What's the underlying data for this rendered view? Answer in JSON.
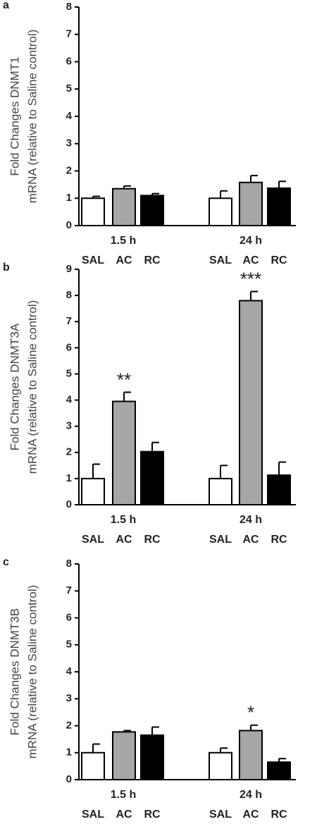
{
  "chart_data": [
    {
      "type": "bar",
      "panel": "a",
      "ylabel": [
        "Fold Changes DNMT1",
        "mRNA (relative to Saline control)"
      ],
      "categories": [
        "1.5 h",
        "24 h"
      ],
      "series": [
        {
          "name": "SAL",
          "color": "#ffffff",
          "values": [
            1.0,
            1.0
          ],
          "errors": [
            0.07,
            0.27
          ]
        },
        {
          "name": "AC",
          "color": "#a6a6a6",
          "values": [
            1.35,
            1.58
          ],
          "errors": [
            0.1,
            0.25
          ]
        },
        {
          "name": "RC",
          "color": "#000000",
          "values": [
            1.1,
            1.37
          ],
          "errors": [
            0.07,
            0.25
          ]
        }
      ],
      "ylim": [
        0,
        8
      ],
      "yticks": [
        0,
        1,
        2,
        3,
        4,
        5,
        6,
        7,
        8
      ],
      "annotations": []
    },
    {
      "type": "bar",
      "panel": "b",
      "ylabel": [
        "Fold Changes DNMT3A",
        "mRNA (relative to Saline control)"
      ],
      "categories": [
        "1.5 h",
        "24 h"
      ],
      "series": [
        {
          "name": "SAL",
          "color": "#ffffff",
          "values": [
            1.0,
            1.0
          ],
          "errors": [
            0.55,
            0.5
          ]
        },
        {
          "name": "AC",
          "color": "#a6a6a6",
          "values": [
            3.95,
            7.8
          ],
          "errors": [
            0.35,
            0.35
          ]
        },
        {
          "name": "RC",
          "color": "#000000",
          "values": [
            2.03,
            1.13
          ],
          "errors": [
            0.35,
            0.5
          ]
        }
      ],
      "ylim": [
        0,
        9
      ],
      "yticks": [
        0,
        1,
        2,
        3,
        4,
        5,
        6,
        7,
        8,
        9
      ],
      "annotations": [
        {
          "text": "**",
          "category": "1.5 h",
          "series": "AC"
        },
        {
          "text": "***",
          "category": "24 h",
          "series": "AC"
        }
      ]
    },
    {
      "type": "bar",
      "panel": "c",
      "ylabel": [
        "Fold Changes DNMT3B",
        "mRNA (relative to Saline control)"
      ],
      "categories": [
        "1.5 h",
        "24 h"
      ],
      "series": [
        {
          "name": "SAL",
          "color": "#ffffff",
          "values": [
            1.0,
            1.0
          ],
          "errors": [
            0.32,
            0.17
          ]
        },
        {
          "name": "AC",
          "color": "#a6a6a6",
          "values": [
            1.77,
            1.82
          ],
          "errors": [
            0.05,
            0.2
          ]
        },
        {
          "name": "RC",
          "color": "#000000",
          "values": [
            1.65,
            0.65
          ],
          "errors": [
            0.3,
            0.13
          ]
        }
      ],
      "ylim": [
        0,
        8
      ],
      "yticks": [
        0,
        1,
        2,
        3,
        4,
        5,
        6,
        7,
        8
      ],
      "annotations": [
        {
          "text": "*",
          "category": "24 h",
          "series": "AC"
        }
      ]
    }
  ]
}
